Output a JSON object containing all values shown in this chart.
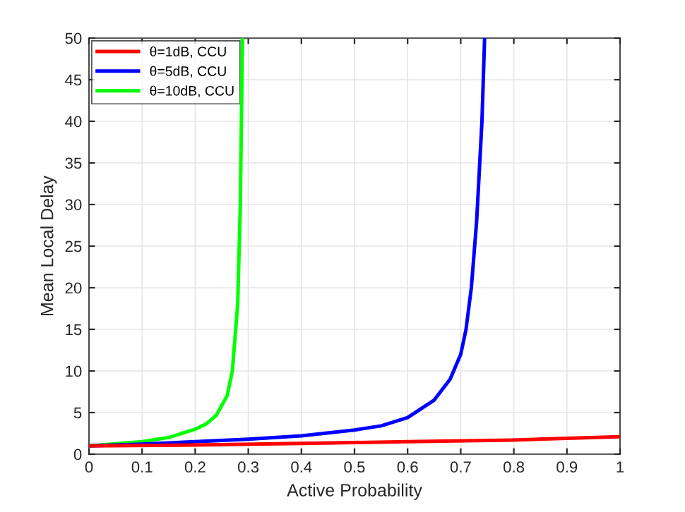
{
  "chart_data": {
    "type": "line",
    "xlabel": "Active Probability",
    "ylabel": "Mean Local Delay",
    "xlim": [
      0,
      1
    ],
    "ylim": [
      0,
      50
    ],
    "xticks": [
      0,
      0.1,
      0.2,
      0.3,
      0.4,
      0.5,
      0.6,
      0.7,
      0.8,
      0.9,
      1
    ],
    "yticks": [
      0,
      5,
      10,
      15,
      20,
      25,
      30,
      35,
      40,
      45,
      50
    ],
    "grid": true,
    "legend": "top left",
    "marker": "none",
    "line_style": "solid",
    "series": [
      {
        "name": "θ=1dB, CCU",
        "color": "#ff0000",
        "x": [
          0,
          0.2,
          0.4,
          0.5,
          0.6,
          0.8,
          1
        ],
        "values": [
          1,
          1.1,
          1.3,
          1.4,
          1.5,
          1.7,
          2.1
        ]
      },
      {
        "name": "θ=5dB, CCU",
        "color": "#0000ff",
        "x": [
          0,
          0.1,
          0.2,
          0.3,
          0.4,
          0.5,
          0.55,
          0.6,
          0.65,
          0.68,
          0.7,
          0.71,
          0.72,
          0.73,
          0.74,
          0.745
        ],
        "values": [
          1,
          1.2,
          1.5,
          1.8,
          2.2,
          2.9,
          3.4,
          4.4,
          6.5,
          9,
          12,
          15,
          20,
          28,
          40,
          50
        ]
      },
      {
        "name": "θ=10dB, CCU",
        "color": "#00ff00",
        "x": [
          0,
          0.1,
          0.15,
          0.2,
          0.22,
          0.24,
          0.26,
          0.27,
          0.28,
          0.285,
          0.287,
          0.289
        ],
        "values": [
          1,
          1.5,
          2,
          3,
          3.6,
          4.7,
          7,
          10,
          18,
          30,
          40,
          50
        ]
      }
    ]
  }
}
